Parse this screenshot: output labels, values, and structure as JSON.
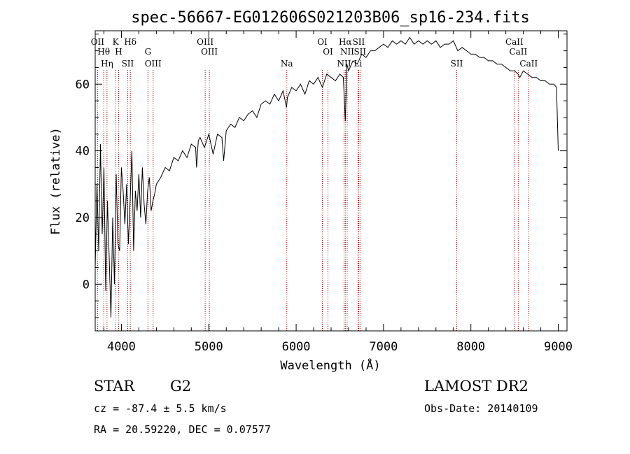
{
  "chart_data": {
    "type": "line",
    "title": "spec-56667-EG012606S021203B06_sp16-234.fits",
    "xlabel": "Wavelength (Å)",
    "ylabel": "Flux (relative)",
    "xlim": [
      3700,
      9100
    ],
    "ylim": [
      -14,
      76
    ],
    "xticks": [
      4000,
      5000,
      6000,
      7000,
      8000,
      9000
    ],
    "yticks": [
      0,
      20,
      40,
      60
    ],
    "grid": false,
    "series": [
      {
        "name": "spectrum",
        "x": [
          3700,
          3720,
          3740,
          3760,
          3780,
          3800,
          3820,
          3840,
          3860,
          3880,
          3900,
          3920,
          3940,
          3960,
          3980,
          4000,
          4020,
          4040,
          4060,
          4080,
          4100,
          4120,
          4140,
          4160,
          4180,
          4200,
          4220,
          4240,
          4260,
          4280,
          4300,
          4320,
          4340,
          4360,
          4380,
          4400,
          4450,
          4500,
          4550,
          4600,
          4650,
          4700,
          4750,
          4800,
          4850,
          4860,
          4880,
          4900,
          4950,
          5000,
          5050,
          5100,
          5150,
          5170,
          5200,
          5250,
          5300,
          5350,
          5400,
          5450,
          5500,
          5550,
          5600,
          5650,
          5700,
          5750,
          5800,
          5850,
          5890,
          5900,
          5950,
          6000,
          6050,
          6100,
          6150,
          6200,
          6250,
          6300,
          6350,
          6400,
          6450,
          6500,
          6540,
          6563,
          6580,
          6600,
          6650,
          6700,
          6750,
          6800,
          6850,
          6900,
          6950,
          7000,
          7050,
          7100,
          7150,
          7200,
          7250,
          7300,
          7350,
          7400,
          7450,
          7500,
          7550,
          7600,
          7650,
          7700,
          7750,
          7800,
          7850,
          7900,
          7950,
          8000,
          8050,
          8100,
          8150,
          8200,
          8250,
          8300,
          8350,
          8400,
          8450,
          8500,
          8540,
          8560,
          8600,
          8650,
          8700,
          8750,
          8800,
          8850,
          8900,
          8950,
          8980,
          9000
        ],
        "y": [
          5,
          30,
          10,
          42,
          15,
          35,
          -2,
          25,
          8,
          -10,
          20,
          0,
          33,
          12,
          10,
          35,
          28,
          18,
          30,
          12,
          25,
          40,
          10,
          28,
          22,
          33,
          20,
          35,
          24,
          18,
          28,
          32,
          22,
          25,
          27,
          30,
          32,
          35,
          34,
          38,
          37,
          40,
          38,
          42,
          41,
          35,
          43,
          44,
          41,
          45,
          39,
          45,
          44,
          37,
          46,
          48,
          47,
          50,
          49,
          51,
          52,
          50,
          54,
          55,
          54,
          57,
          55,
          58,
          53,
          56,
          59,
          58,
          60,
          57,
          61,
          60,
          62,
          59,
          63,
          62,
          61,
          63,
          62,
          49,
          66,
          64,
          67,
          66,
          69,
          68,
          70,
          70,
          71,
          72,
          71,
          73,
          72,
          73,
          72,
          74,
          72,
          73,
          72,
          73,
          72,
          73,
          71,
          72,
          72,
          73,
          70,
          71,
          70,
          69,
          69,
          68,
          68,
          67,
          67,
          66,
          66,
          65,
          64,
          64,
          63,
          62,
          64,
          63,
          62,
          62,
          61,
          61,
          60,
          60,
          59,
          40
        ]
      }
    ],
    "line_markers": [
      {
        "label": "OII",
        "wavelength": 3727
      },
      {
        "label": "Hθ",
        "wavelength": 3798
      },
      {
        "label": "Hη",
        "wavelength": 3835
      },
      {
        "label": "K",
        "wavelength": 3933
      },
      {
        "label": "H",
        "wavelength": 3968
      },
      {
        "label": "SII",
        "wavelength": 4072
      },
      {
        "label": "Hδ",
        "wavelength": 4102
      },
      {
        "label": "G",
        "wavelength": 4304
      },
      {
        "label": "OIII",
        "wavelength": 4363
      },
      {
        "label": "OIII",
        "wavelength": 4959
      },
      {
        "label": "OIII",
        "wavelength": 5007
      },
      {
        "label": "Na",
        "wavelength": 5893
      },
      {
        "label": "OI",
        "wavelength": 6300
      },
      {
        "label": "OI",
        "wavelength": 6364
      },
      {
        "label": "NII",
        "wavelength": 6548
      },
      {
        "label": "Hα",
        "wavelength": 6563
      },
      {
        "label": "NII",
        "wavelength": 6584
      },
      {
        "label": "Li",
        "wavelength": 6708
      },
      {
        "label": "SII",
        "wavelength": 6716
      },
      {
        "label": "SII",
        "wavelength": 6731
      },
      {
        "label": "SII",
        "wavelength": 7838
      },
      {
        "label": "CaII",
        "wavelength": 8498
      },
      {
        "label": "CaII",
        "wavelength": 8542
      },
      {
        "label": "CaII",
        "wavelength": 8662
      }
    ]
  },
  "footer": {
    "object_type": "STAR",
    "subclass": "G2",
    "survey": "LAMOST DR2",
    "cz": "cz = -87.4 ± 5.5 km/s",
    "obs_date": "Obs-Date: 20140109",
    "coords": "RA =  20.59220, DEC =   0.07577"
  }
}
